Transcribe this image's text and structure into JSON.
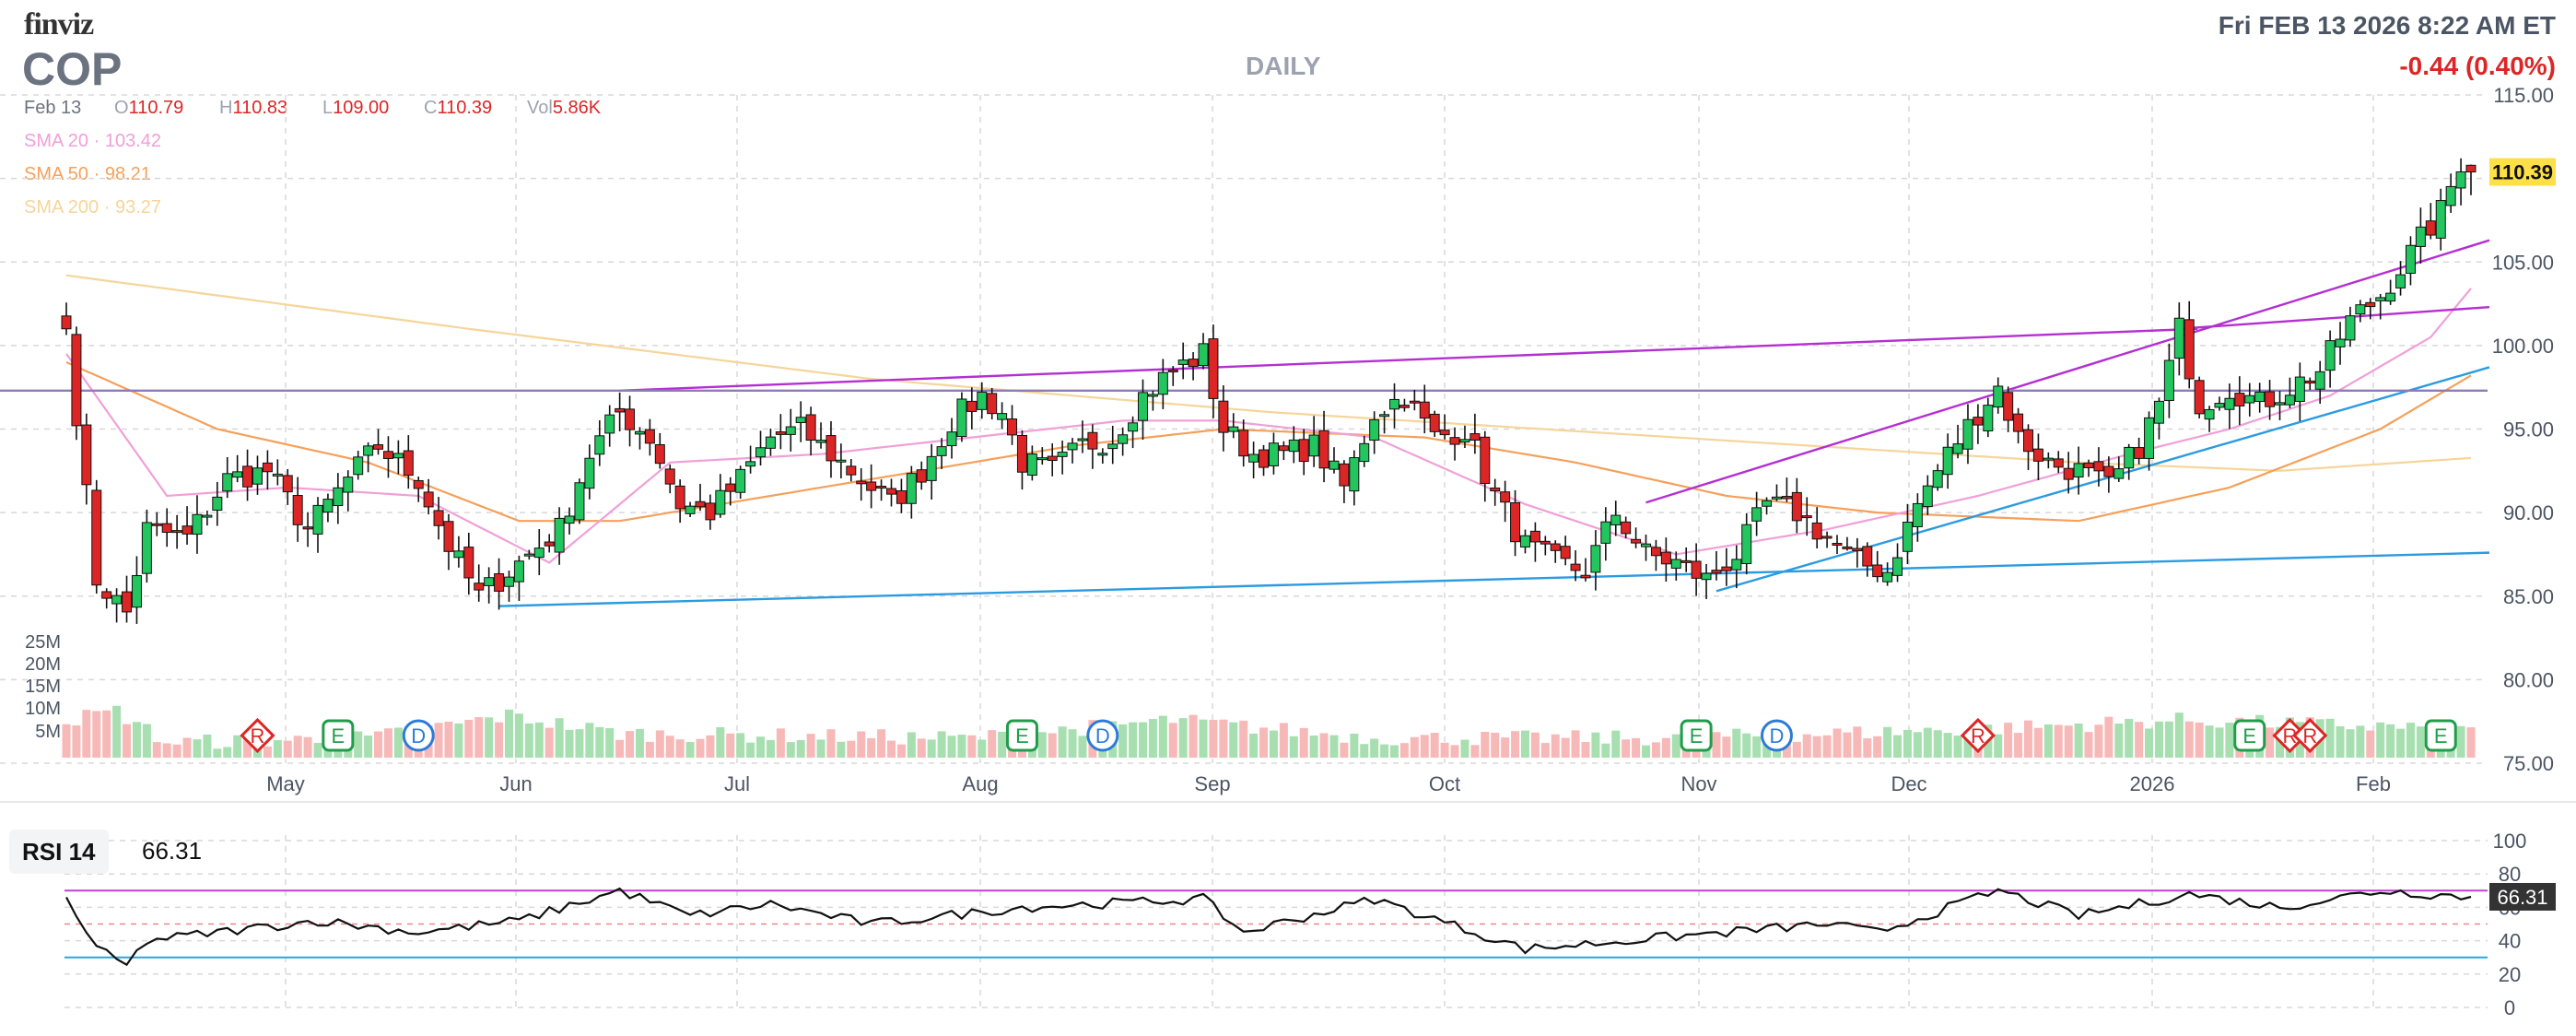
{
  "header": {
    "logo": "finviz",
    "ticker": "COP",
    "period": "DAILY",
    "datetime": "Fri FEB 13 2026 8:22 AM ET",
    "change": "-0.44 (0.40%)"
  },
  "ohlc": {
    "date": "Feb 13",
    "open_label": "O",
    "open": "110.79",
    "high_label": "H",
    "high": "110.83",
    "low_label": "L",
    "low": "109.00",
    "close_label": "C",
    "close": "110.39",
    "vol_label": "Vol",
    "vol": "5.86K"
  },
  "sma": {
    "sma20_label": "SMA 20",
    "sma20_value": "103.42",
    "sma50_label": "SMA 50",
    "sma50_value": "98.21",
    "sma200_label": "SMA 200",
    "sma200_value": "93.27",
    "sep": "·"
  },
  "colors": {
    "up": "#22c55e",
    "down": "#dc2626",
    "sma20": "#f0a0d8",
    "sma50": "#f5a05a",
    "sma200": "#f5d59a",
    "trend_purple": "#b42fd2",
    "trend_blue": "#2b9be0",
    "horizontal": "#8e7bb8",
    "price_tag_bg": "#fde047",
    "grid": "#d8d8d8",
    "rsi_line": "#111111"
  },
  "price_tag": "110.39",
  "rsi": {
    "label": "RSI 14",
    "value": "66.31",
    "tag": "66.31",
    "ticks": [
      "100",
      "80",
      "60",
      "40",
      "20",
      "0"
    ]
  },
  "chart_data": {
    "type": "candlestick",
    "symbol": "COP",
    "interval": "daily",
    "y_ticks": [
      "115.00",
      "110.00",
      "105.00",
      "100.00",
      "95.00",
      "90.00",
      "85.00",
      "80.00",
      "75.00"
    ],
    "ylim": [
      75,
      115
    ],
    "volume_ticks": [
      "25M",
      "20M",
      "15M",
      "10M",
      "5M"
    ],
    "x_labels": [
      "May",
      "Jun",
      "Jul",
      "Aug",
      "Sep",
      "Oct",
      "Nov",
      "Dec",
      "2026",
      "Feb"
    ],
    "close_anchors": [
      {
        "i": 0,
        "c": 101.0
      },
      {
        "i": 1,
        "c": 96.0
      },
      {
        "i": 3,
        "c": 86.0
      },
      {
        "i": 6,
        "c": 84.0
      },
      {
        "i": 8,
        "c": 89.0
      },
      {
        "i": 12,
        "c": 88.5
      },
      {
        "i": 16,
        "c": 92.0
      },
      {
        "i": 20,
        "c": 92.5
      },
      {
        "i": 24,
        "c": 89.0
      },
      {
        "i": 28,
        "c": 92.0
      },
      {
        "i": 31,
        "c": 94.0
      },
      {
        "i": 35,
        "c": 92.0
      },
      {
        "i": 38,
        "c": 88.0
      },
      {
        "i": 41,
        "c": 85.0
      },
      {
        "i": 45,
        "c": 87.0
      },
      {
        "i": 49,
        "c": 89.0
      },
      {
        "i": 52,
        "c": 93.5
      },
      {
        "i": 55,
        "c": 96.0
      },
      {
        "i": 58,
        "c": 94.5
      },
      {
        "i": 61,
        "c": 90.5
      },
      {
        "i": 64,
        "c": 90.0
      },
      {
        "i": 67,
        "c": 92.0
      },
      {
        "i": 70,
        "c": 94.5
      },
      {
        "i": 73,
        "c": 95.0
      },
      {
        "i": 76,
        "c": 93.5
      },
      {
        "i": 79,
        "c": 92.0
      },
      {
        "i": 82,
        "c": 90.5
      },
      {
        "i": 85,
        "c": 92.5
      },
      {
        "i": 88,
        "c": 95.5
      },
      {
        "i": 91,
        "c": 97.0
      },
      {
        "i": 93,
        "c": 96.0
      },
      {
        "i": 95,
        "c": 93.0
      },
      {
        "i": 98,
        "c": 92.5
      },
      {
        "i": 101,
        "c": 94.0
      },
      {
        "i": 104,
        "c": 94.5
      },
      {
        "i": 107,
        "c": 97.0
      },
      {
        "i": 110,
        "c": 98.5
      },
      {
        "i": 113,
        "c": 99.5
      },
      {
        "i": 115,
        "c": 95.0
      },
      {
        "i": 118,
        "c": 93.5
      },
      {
        "i": 121,
        "c": 93.5
      },
      {
        "i": 124,
        "c": 94.0
      },
      {
        "i": 127,
        "c": 91.5
      },
      {
        "i": 130,
        "c": 96.0
      },
      {
        "i": 133,
        "c": 97.0
      },
      {
        "i": 136,
        "c": 94.5
      },
      {
        "i": 139,
        "c": 95.0
      },
      {
        "i": 142,
        "c": 91.0
      },
      {
        "i": 145,
        "c": 88.0
      },
      {
        "i": 148,
        "c": 87.0
      },
      {
        "i": 151,
        "c": 86.5
      },
      {
        "i": 154,
        "c": 90.0
      },
      {
        "i": 157,
        "c": 87.5
      },
      {
        "i": 160,
        "c": 87.0
      },
      {
        "i": 163,
        "c": 86.0
      },
      {
        "i": 166,
        "c": 87.5
      },
      {
        "i": 169,
        "c": 90.5
      },
      {
        "i": 172,
        "c": 90.0
      },
      {
        "i": 175,
        "c": 88.5
      },
      {
        "i": 178,
        "c": 87.0
      },
      {
        "i": 181,
        "c": 86.5
      },
      {
        "i": 184,
        "c": 90.5
      },
      {
        "i": 187,
        "c": 93.5
      },
      {
        "i": 190,
        "c": 96.0
      },
      {
        "i": 192,
        "c": 97.5
      },
      {
        "i": 194,
        "c": 94.5
      },
      {
        "i": 197,
        "c": 93.0
      },
      {
        "i": 200,
        "c": 92.5
      },
      {
        "i": 203,
        "c": 91.5
      },
      {
        "i": 206,
        "c": 94.0
      },
      {
        "i": 208,
        "c": 96.5
      },
      {
        "i": 210,
        "c": 101.0
      },
      {
        "i": 212,
        "c": 96.5
      },
      {
        "i": 215,
        "c": 97.5
      },
      {
        "i": 218,
        "c": 96.5
      },
      {
        "i": 221,
        "c": 97.5
      },
      {
        "i": 224,
        "c": 98.5
      },
      {
        "i": 227,
        "c": 101.5
      },
      {
        "i": 230,
        "c": 103.0
      },
      {
        "i": 233,
        "c": 105.5
      },
      {
        "i": 236,
        "c": 108.0
      },
      {
        "i": 238,
        "c": 111.0
      },
      {
        "i": 239,
        "c": 110.39
      }
    ],
    "sma20_anchors": [
      {
        "i": 0,
        "v": 99.5
      },
      {
        "i": 10,
        "v": 91.0
      },
      {
        "i": 22,
        "v": 91.5
      },
      {
        "i": 35,
        "v": 91.0
      },
      {
        "i": 48,
        "v": 87.0
      },
      {
        "i": 60,
        "v": 93.0
      },
      {
        "i": 75,
        "v": 93.5
      },
      {
        "i": 90,
        "v": 94.5
      },
      {
        "i": 105,
        "v": 95.5
      },
      {
        "i": 115,
        "v": 95.5
      },
      {
        "i": 130,
        "v": 94.5
      },
      {
        "i": 145,
        "v": 90.5
      },
      {
        "i": 160,
        "v": 87.5
      },
      {
        "i": 175,
        "v": 89.0
      },
      {
        "i": 190,
        "v": 91.0
      },
      {
        "i": 205,
        "v": 93.5
      },
      {
        "i": 215,
        "v": 95.0
      },
      {
        "i": 225,
        "v": 97.0
      },
      {
        "i": 235,
        "v": 100.5
      },
      {
        "i": 239,
        "v": 103.42
      }
    ],
    "sma50_anchors": [
      {
        "i": 0,
        "v": 99.0
      },
      {
        "i": 15,
        "v": 95.0
      },
      {
        "i": 30,
        "v": 93.0
      },
      {
        "i": 45,
        "v": 89.5
      },
      {
        "i": 55,
        "v": 89.5
      },
      {
        "i": 70,
        "v": 91.0
      },
      {
        "i": 85,
        "v": 92.5
      },
      {
        "i": 100,
        "v": 94.0
      },
      {
        "i": 115,
        "v": 95.0
      },
      {
        "i": 135,
        "v": 94.5
      },
      {
        "i": 150,
        "v": 93.0
      },
      {
        "i": 165,
        "v": 91.0
      },
      {
        "i": 180,
        "v": 90.0
      },
      {
        "i": 200,
        "v": 89.5
      },
      {
        "i": 215,
        "v": 91.5
      },
      {
        "i": 230,
        "v": 95.0
      },
      {
        "i": 239,
        "v": 98.21
      }
    ],
    "sma200_anchors": [
      {
        "i": 0,
        "v": 104.2
      },
      {
        "i": 40,
        "v": 101.0
      },
      {
        "i": 80,
        "v": 98.0
      },
      {
        "i": 120,
        "v": 96.0
      },
      {
        "i": 160,
        "v": 94.5
      },
      {
        "i": 200,
        "v": 93.0
      },
      {
        "i": 220,
        "v": 92.5
      },
      {
        "i": 239,
        "v": 93.27
      }
    ],
    "volume_anchors": [
      {
        "i": 0,
        "v": 8
      },
      {
        "i": 5,
        "v": 10
      },
      {
        "i": 10,
        "v": 3
      },
      {
        "i": 30,
        "v": 4
      },
      {
        "i": 44,
        "v": 9
      },
      {
        "i": 55,
        "v": 5
      },
      {
        "i": 90,
        "v": 4
      },
      {
        "i": 110,
        "v": 8
      },
      {
        "i": 130,
        "v": 4
      },
      {
        "i": 160,
        "v": 4
      },
      {
        "i": 190,
        "v": 6
      },
      {
        "i": 210,
        "v": 8
      },
      {
        "i": 239,
        "v": 6
      }
    ],
    "events": [
      {
        "type": "R",
        "i": 19
      },
      {
        "type": "E",
        "i": 27
      },
      {
        "type": "D",
        "i": 35
      },
      {
        "type": "E",
        "i": 95
      },
      {
        "type": "D",
        "i": 103
      },
      {
        "type": "E",
        "i": 162
      },
      {
        "type": "D",
        "i": 170
      },
      {
        "type": "R",
        "i": 190
      },
      {
        "type": "E",
        "i": 217
      },
      {
        "type": "R",
        "i": 221
      },
      {
        "type": "R",
        "i": 223
      },
      {
        "type": "E",
        "i": 236
      }
    ],
    "trendlines": [
      {
        "color": "purple",
        "from": {
          "i": 55,
          "v": 97.3
        },
        "to": {
          "i": 210,
          "v": 101.0
        }
      },
      {
        "color": "purple",
        "from": {
          "i": 210,
          "v": 101.0
        },
        "to": {
          "i": 239,
          "v": 102.3
        }
      },
      {
        "color": "purple",
        "from": {
          "i": 157,
          "v": 90.6
        },
        "to": {
          "i": 239,
          "v": 106.3
        }
      },
      {
        "color": "blue",
        "from": {
          "i": 43,
          "v": 84.4
        },
        "to": {
          "i": 239,
          "v": 87.6
        }
      },
      {
        "color": "blue",
        "from": {
          "i": 164,
          "v": 85.3
        },
        "to": {
          "i": 239,
          "v": 98.7
        }
      },
      {
        "color": "horizontal",
        "from": {
          "i": 0,
          "v": 97.3
        },
        "to": {
          "i": 239,
          "v": 97.3
        }
      }
    ],
    "rsi_anchors": [
      {
        "i": 0,
        "v": 66
      },
      {
        "i": 3,
        "v": 35
      },
      {
        "i": 6,
        "v": 25
      },
      {
        "i": 8,
        "v": 40
      },
      {
        "i": 15,
        "v": 45
      },
      {
        "i": 25,
        "v": 52
      },
      {
        "i": 35,
        "v": 45
      },
      {
        "i": 45,
        "v": 52
      },
      {
        "i": 55,
        "v": 70
      },
      {
        "i": 62,
        "v": 55
      },
      {
        "i": 70,
        "v": 62
      },
      {
        "i": 80,
        "v": 50
      },
      {
        "i": 95,
        "v": 60
      },
      {
        "i": 113,
        "v": 65
      },
      {
        "i": 117,
        "v": 45
      },
      {
        "i": 130,
        "v": 65
      },
      {
        "i": 145,
        "v": 35
      },
      {
        "i": 155,
        "v": 40
      },
      {
        "i": 165,
        "v": 45
      },
      {
        "i": 175,
        "v": 50
      },
      {
        "i": 180,
        "v": 45
      },
      {
        "i": 192,
        "v": 70
      },
      {
        "i": 200,
        "v": 55
      },
      {
        "i": 211,
        "v": 68
      },
      {
        "i": 220,
        "v": 60
      },
      {
        "i": 230,
        "v": 70
      },
      {
        "i": 239,
        "v": 66.31
      }
    ],
    "rsi_levels": {
      "overbought": 70,
      "oversold": 30,
      "mid": 50
    }
  }
}
